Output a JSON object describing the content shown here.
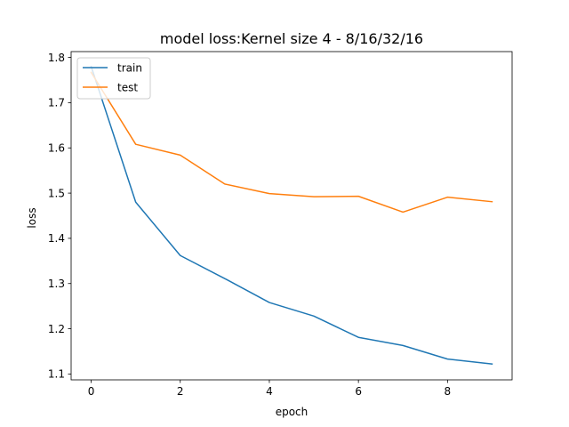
{
  "chart_data": {
    "type": "line",
    "title": "model loss:Kernel size 4 - 8/16/32/16",
    "xlabel": "epoch",
    "ylabel": "loss",
    "xlim": [
      -0.45,
      9.45
    ],
    "ylim": [
      1.087,
      1.813
    ],
    "xticks": [
      0,
      2,
      4,
      6,
      8
    ],
    "xtick_labels": [
      "0",
      "2",
      "4",
      "6",
      "8"
    ],
    "yticks": [
      1.1,
      1.2,
      1.3,
      1.4,
      1.5,
      1.6,
      1.7,
      1.8
    ],
    "ytick_labels": [
      "1.1",
      "1.2",
      "1.3",
      "1.4",
      "1.5",
      "1.6",
      "1.7",
      "1.8"
    ],
    "grid": false,
    "legend_position": "top-left",
    "series": [
      {
        "name": "train",
        "color": "#1f77b4",
        "x": [
          0,
          1,
          2,
          3,
          4,
          5,
          6,
          7,
          8,
          9
        ],
        "values": [
          1.78,
          1.48,
          1.362,
          1.311,
          1.258,
          1.228,
          1.181,
          1.163,
          1.133,
          1.122
        ]
      },
      {
        "name": "test",
        "color": "#ff7f0e",
        "x": [
          0,
          1,
          2,
          3,
          4,
          5,
          6,
          7,
          8,
          9
        ],
        "values": [
          1.767,
          1.608,
          1.584,
          1.52,
          1.499,
          1.492,
          1.493,
          1.458,
          1.491,
          1.481
        ]
      }
    ]
  }
}
